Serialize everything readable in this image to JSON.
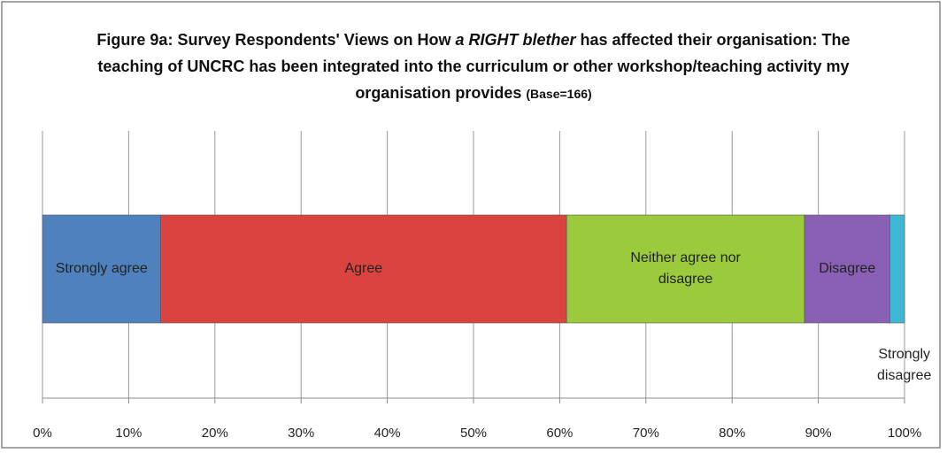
{
  "chart_data": {
    "type": "stacked-bar-horizontal",
    "title_parts": [
      "Figure 9a: Survey Respondents' Views on How ",
      "a RIGHT blether",
      " has affected their organisation: The teaching of UNCRC has been integrated into the curriculum or other workshop/teaching activity my organisation provides ",
      "(Base=166)"
    ],
    "series": [
      {
        "name": "Strongly agree",
        "color": "#4f81bd",
        "values": [
          13.7
        ]
      },
      {
        "name": "Agree",
        "color": "#d9443f",
        "values": [
          47.1
        ]
      },
      {
        "name": "Neither agree nor disagree",
        "color": "#9bcb3c",
        "values": [
          27.6
        ]
      },
      {
        "name": "Disagree",
        "color": "#8a5fb6",
        "values": [
          9.9
        ]
      },
      {
        "name": "Strongly disagree",
        "color": "#3fb8d4",
        "values": [
          1.7
        ]
      }
    ],
    "xlim": [
      0,
      100
    ],
    "xticks": [
      {
        "value": 0,
        "label": "0%"
      },
      {
        "value": 10,
        "label": "10%"
      },
      {
        "value": 20,
        "label": "20%"
      },
      {
        "value": 30,
        "label": "30%"
      },
      {
        "value": 40,
        "label": "40%"
      },
      {
        "value": 50,
        "label": "50%"
      },
      {
        "value": 60,
        "label": "60%"
      },
      {
        "value": 70,
        "label": "70%"
      },
      {
        "value": 80,
        "label": "80%"
      },
      {
        "value": 90,
        "label": "90%"
      },
      {
        "value": 100,
        "label": "100%"
      }
    ],
    "grid": true
  }
}
